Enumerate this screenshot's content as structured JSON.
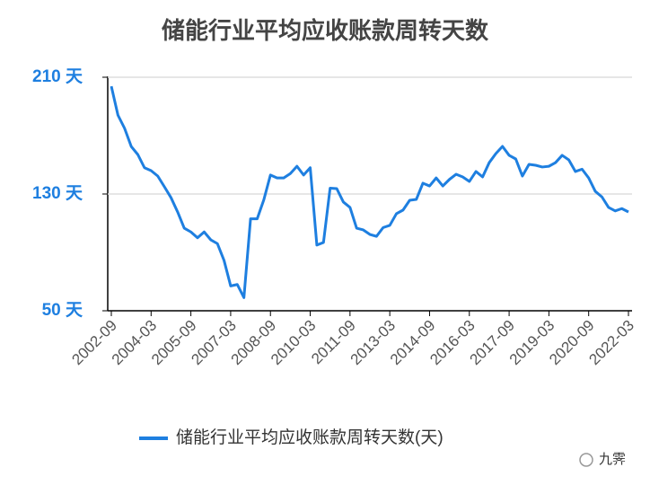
{
  "chart_data": {
    "type": "line",
    "title": "储能行业平均应收账款周转天数",
    "categories": [
      "2002-09",
      null,
      null,
      null,
      null,
      null,
      "2004-03",
      null,
      null,
      null,
      null,
      null,
      "2005-09",
      null,
      null,
      null,
      null,
      null,
      "2007-03",
      null,
      null,
      null,
      null,
      null,
      "2008-09",
      null,
      null,
      null,
      null,
      null,
      "2010-03",
      null,
      null,
      null,
      null,
      null,
      "2011-09",
      null,
      null,
      null,
      null,
      null,
      "2013-03",
      null,
      null,
      null,
      null,
      null,
      "2014-09",
      null,
      null,
      null,
      null,
      null,
      "2016-03",
      null,
      null,
      null,
      null,
      null,
      "2017-09",
      null,
      null,
      null,
      null,
      null,
      "2019-03",
      null,
      null,
      null,
      null,
      null,
      "2020-09",
      null,
      null,
      null,
      null,
      null,
      "2022-03"
    ],
    "series": [
      {
        "name": "储能行业平均应收账款周转天数(天)",
        "color": "#1e7fe0",
        "values": [
          203.8,
          184,
          175,
          162.6,
          157,
          148,
          146,
          142.3,
          135,
          127.5,
          117.7,
          106.6,
          104,
          100,
          104,
          98.6,
          96,
          84.5,
          67,
          68,
          59,
          113,
          113,
          126,
          143,
          141,
          141,
          144,
          149,
          143,
          148,
          95,
          96.8,
          134,
          133.7,
          124.5,
          120.8,
          106.6,
          105.4,
          102.3,
          101,
          107,
          108.5,
          116.5,
          119,
          125.7,
          126.3,
          137.4,
          135.5,
          141,
          135.5,
          140,
          143.5,
          141.7,
          138.6,
          145.4,
          141.7,
          151.5,
          157.7,
          162.6,
          156.5,
          154,
          142.3,
          150.3,
          149.7,
          148.5,
          149,
          151.5,
          156.5,
          153.4,
          145.4,
          147,
          141,
          131.8,
          128,
          120.8,
          118.4,
          120,
          117.7
        ]
      }
    ],
    "ylim": [
      50,
      210
    ],
    "yticks": [
      {
        "value": 50,
        "label": "50 天"
      },
      {
        "value": 130,
        "label": "130 天"
      },
      {
        "value": 210,
        "label": "210 天"
      }
    ],
    "grid": true,
    "legend": "bottom",
    "watermark": "九霁"
  }
}
